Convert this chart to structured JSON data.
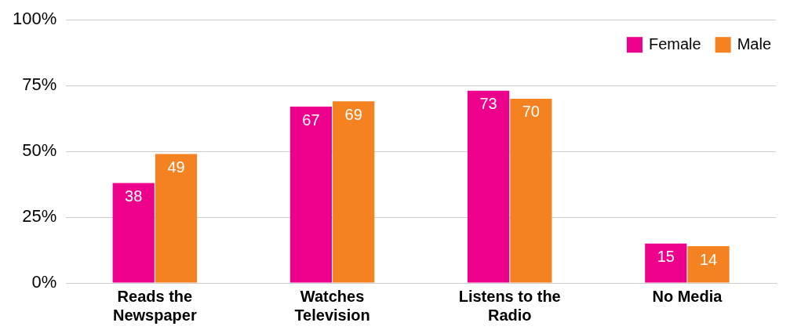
{
  "chart_data": {
    "type": "bar",
    "categories": [
      "Reads the Newspaper",
      "Watches Television",
      "Listens to the Radio",
      "No Media"
    ],
    "series": [
      {
        "name": "Female",
        "color": "#ec008c",
        "values": [
          38,
          67,
          73,
          15
        ]
      },
      {
        "name": "Male",
        "color": "#f58220",
        "values": [
          49,
          69,
          70,
          14
        ]
      }
    ],
    "ylim": [
      0,
      100
    ],
    "yticks": [
      {
        "value": 0,
        "label": "0%"
      },
      {
        "value": 25,
        "label": "25%"
      },
      {
        "value": 50,
        "label": "50%"
      },
      {
        "value": 75,
        "label": "75%"
      },
      {
        "value": 100,
        "label": "100%"
      }
    ],
    "grid": "y",
    "legend": "top right",
    "data_labels": true
  }
}
